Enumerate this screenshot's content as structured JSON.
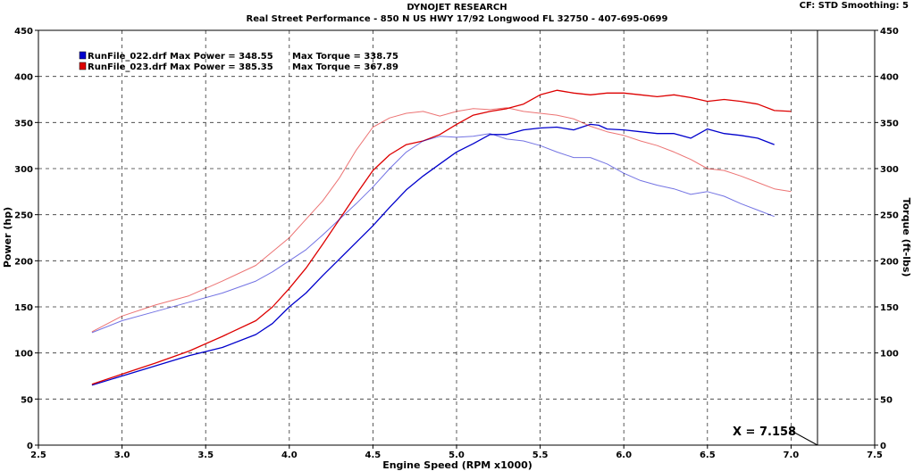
{
  "header": {
    "title": "DYNOJET RESEARCH",
    "subtitle": "Real Street Performance - 850 N US HWY 17/92 Longwood FL 32750 - 407-695-0699",
    "cf_info": "CF: STD  Smoothing: 5"
  },
  "cursor_label": "X = 7.158",
  "chart_data": {
    "type": "line",
    "title": "DYNOJET RESEARCH",
    "xlabel": "Engine Speed (RPM x1000)",
    "ylabel": "Power (hp)",
    "y2label": "Torque (ft-lbs)",
    "xlim": [
      2.5,
      7.5
    ],
    "ylim": [
      0,
      450
    ],
    "y2lim": [
      0,
      450
    ],
    "x_ticks": [
      "2.5",
      "3.0",
      "3.5",
      "4.0",
      "4.5",
      "5.0",
      "5.5",
      "6.0",
      "6.5",
      "7.0",
      "7.5"
    ],
    "y_ticks": [
      "0",
      "50",
      "100",
      "150",
      "200",
      "250",
      "300",
      "350",
      "400",
      "450"
    ],
    "grid": true,
    "cursor_x": 7.158,
    "legend": [
      {
        "swatch": "#0000cc",
        "text": "RunFile_022.drf Max Power = 348.55",
        "torque_text": "Max Torque = 338.75"
      },
      {
        "swatch": "#dd0000",
        "text": "RunFile_023.drf Max Power = 385.35",
        "torque_text": "Max Torque = 367.89"
      }
    ],
    "series": [
      {
        "name": "RunFile_022.drf Power",
        "color": "#0000cc",
        "style": "dark",
        "x": [
          2.82,
          3.0,
          3.2,
          3.4,
          3.6,
          3.8,
          3.9,
          4.0,
          4.1,
          4.2,
          4.3,
          4.4,
          4.5,
          4.6,
          4.7,
          4.8,
          4.9,
          5.0,
          5.1,
          5.2,
          5.3,
          5.4,
          5.5,
          5.6,
          5.7,
          5.8,
          5.85,
          5.9,
          6.0,
          6.1,
          6.2,
          6.3,
          6.4,
          6.5,
          6.6,
          6.7,
          6.8,
          6.9
        ],
        "y": [
          65,
          75,
          86,
          97,
          106,
          120,
          132,
          150,
          165,
          184,
          202,
          220,
          238,
          258,
          277,
          292,
          305,
          318,
          327,
          337,
          337,
          342,
          344,
          345,
          342,
          348,
          347,
          343,
          342,
          340,
          338,
          338,
          333,
          343,
          338,
          336,
          333,
          326
        ]
      },
      {
        "name": "RunFile_023.drf Power",
        "color": "#dd0000",
        "style": "dark",
        "x": [
          2.82,
          3.0,
          3.2,
          3.4,
          3.6,
          3.8,
          3.9,
          4.0,
          4.1,
          4.2,
          4.3,
          4.4,
          4.5,
          4.6,
          4.7,
          4.8,
          4.9,
          5.0,
          5.1,
          5.2,
          5.3,
          5.4,
          5.5,
          5.6,
          5.7,
          5.8,
          5.9,
          6.0,
          6.1,
          6.2,
          6.3,
          6.4,
          6.5,
          6.6,
          6.7,
          6.8,
          6.9,
          7.0
        ],
        "y": [
          66,
          77,
          89,
          102,
          118,
          135,
          150,
          170,
          192,
          218,
          245,
          272,
          298,
          315,
          326,
          330,
          337,
          348,
          358,
          362,
          365,
          370,
          380,
          385,
          382,
          380,
          382,
          382,
          380,
          378,
          380,
          377,
          373,
          375,
          373,
          370,
          363,
          362
        ]
      },
      {
        "name": "RunFile_022.drf Torque",
        "color": "#0000cc",
        "style": "light",
        "x": [
          2.82,
          3.0,
          3.2,
          3.4,
          3.6,
          3.8,
          3.9,
          4.0,
          4.1,
          4.2,
          4.3,
          4.4,
          4.5,
          4.6,
          4.7,
          4.8,
          4.9,
          5.0,
          5.1,
          5.2,
          5.3,
          5.4,
          5.5,
          5.6,
          5.7,
          5.8,
          5.9,
          6.0,
          6.1,
          6.2,
          6.3,
          6.4,
          6.5,
          6.6,
          6.7,
          6.8,
          6.9
        ],
        "y": [
          122,
          135,
          145,
          155,
          165,
          178,
          188,
          200,
          212,
          228,
          245,
          262,
          280,
          300,
          318,
          330,
          335,
          334,
          335,
          338,
          332,
          330,
          325,
          318,
          312,
          312,
          305,
          295,
          287,
          282,
          278,
          272,
          275,
          270,
          262,
          255,
          248
        ]
      },
      {
        "name": "RunFile_023.drf Torque",
        "color": "#dd0000",
        "style": "light",
        "x": [
          2.82,
          3.0,
          3.2,
          3.4,
          3.6,
          3.8,
          3.9,
          4.0,
          4.1,
          4.2,
          4.3,
          4.4,
          4.5,
          4.6,
          4.7,
          4.8,
          4.9,
          5.0,
          5.1,
          5.2,
          5.3,
          5.4,
          5.5,
          5.6,
          5.7,
          5.8,
          5.9,
          6.0,
          6.1,
          6.2,
          6.3,
          6.4,
          6.5,
          6.6,
          6.7,
          6.8,
          6.9,
          7.0
        ],
        "y": [
          123,
          140,
          152,
          162,
          178,
          195,
          210,
          225,
          245,
          265,
          290,
          320,
          345,
          355,
          360,
          362,
          357,
          362,
          365,
          364,
          366,
          362,
          360,
          358,
          354,
          346,
          340,
          336,
          330,
          325,
          318,
          310,
          300,
          298,
          292,
          285,
          278,
          275
        ]
      }
    ]
  }
}
